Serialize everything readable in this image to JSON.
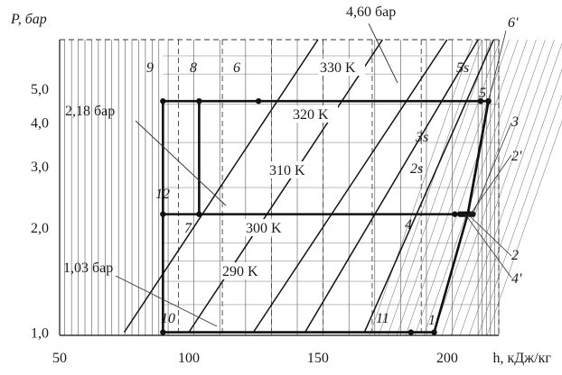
{
  "chart_data": {
    "type": "diagram-ph",
    "x_axis": {
      "label": "h, кДж/кг",
      "range": [
        50,
        220
      ],
      "ticks": [
        {
          "value": 50,
          "label": "50"
        },
        {
          "value": 100,
          "label": "100"
        },
        {
          "value": 150,
          "label": "150"
        },
        {
          "value": 200,
          "label": "200"
        }
      ]
    },
    "y_axis": {
      "label": "P, бар",
      "scale": "log",
      "range": [
        0.98,
        6.9
      ],
      "ticks": [
        {
          "value": 1.0,
          "label": "1,0"
        },
        {
          "value": 2.0,
          "label": "2,0"
        },
        {
          "value": 3.0,
          "label": "3,0"
        },
        {
          "value": 4.0,
          "label": "4,0"
        },
        {
          "value": 5.0,
          "label": "5,0"
        }
      ]
    },
    "pressure_levels": [
      {
        "value": 1.03,
        "label": "1,03 бар"
      },
      {
        "value": 2.18,
        "label": "2,18 бар"
      },
      {
        "value": 4.6,
        "label": "4,60 бар"
      }
    ],
    "isotherms": [
      {
        "label": "290 K",
        "points": [
          [
            75,
            1.0
          ],
          [
            150,
            6.9
          ]
        ]
      },
      {
        "label": "300 K",
        "points": [
          [
            100,
            1.0
          ],
          [
            175,
            6.9
          ]
        ]
      },
      {
        "label": "310 K",
        "points": [
          [
            125,
            1.0
          ],
          [
            200,
            6.9
          ]
        ]
      },
      {
        "label": "320 K",
        "points": [
          [
            145,
            1.0
          ],
          [
            212,
            6.9
          ]
        ]
      },
      {
        "label": "330 K",
        "points": [
          [
            168,
            1.0
          ],
          [
            218,
            6.9
          ]
        ]
      }
    ],
    "cycle_points": [
      {
        "label": "1",
        "h": 195,
        "p": 1.0
      },
      {
        "label": "2s",
        "h": 205,
        "p": 2.18
      },
      {
        "label": "2",
        "h": 208,
        "p": 2.18
      },
      {
        "label": "2'",
        "h": 209,
        "p": 2.18
      },
      {
        "label": "3s",
        "h": 206,
        "p": 2.18
      },
      {
        "label": "3",
        "h": 210,
        "p": 2.18
      },
      {
        "label": "4",
        "h": 203,
        "p": 2.18
      },
      {
        "label": "4'",
        "h": 207,
        "p": 2.18
      },
      {
        "label": "5s",
        "h": 213,
        "p": 4.6
      },
      {
        "label": "5",
        "h": 216,
        "p": 4.6
      },
      {
        "label": "6",
        "h": 127,
        "p": 4.6
      },
      {
        "label": "6'",
        "h": 216,
        "p": 4.6
      },
      {
        "label": "7",
        "h": 104,
        "p": 2.18
      },
      {
        "label": "8",
        "h": 104,
        "p": 4.6
      },
      {
        "label": "9",
        "h": 90,
        "p": 4.6
      },
      {
        "label": "10",
        "h": 90,
        "p": 1.0
      },
      {
        "label": "11",
        "h": 186,
        "p": 1.0
      },
      {
        "label": "12",
        "h": 90,
        "p": 2.18
      }
    ],
    "cycle_lines": [
      [
        "10",
        "1"
      ],
      [
        "1",
        "2"
      ],
      [
        "2",
        "7"
      ],
      [
        "7",
        "8"
      ],
      [
        "9",
        "5"
      ],
      [
        "5",
        "2"
      ],
      [
        "10",
        "9"
      ]
    ],
    "grid": true
  }
}
